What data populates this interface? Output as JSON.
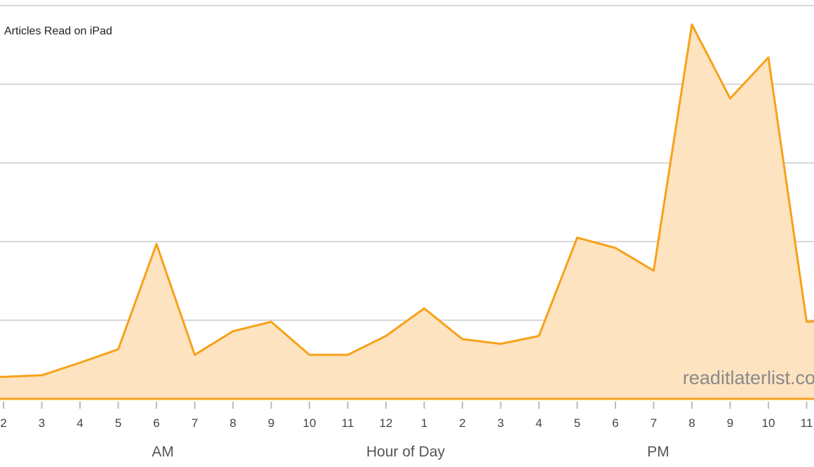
{
  "chart_data": {
    "type": "area",
    "title": "",
    "legend": {
      "label": "Articles Read on iPad",
      "placement": "top-left"
    },
    "xlabel": "Hour of Day",
    "period_labels": [
      "AM",
      "PM"
    ],
    "watermark": "readitlaterlist.co",
    "categories": [
      "2",
      "3",
      "4",
      "5",
      "6",
      "7",
      "8",
      "9",
      "10",
      "11",
      "12",
      "1",
      "2",
      "3",
      "4",
      "5",
      "6",
      "7",
      "8",
      "9",
      "10",
      "11"
    ],
    "series": [
      {
        "values": [
          0.28,
          0.3,
          0.46,
          0.63,
          1.97,
          0.56,
          0.86,
          0.98,
          0.56,
          0.56,
          0.8,
          1.15,
          0.76,
          0.7,
          0.8,
          2.05,
          1.92,
          1.63,
          4.76,
          3.82,
          4.34,
          0.98
        ]
      }
    ],
    "trailing_value": 1.01,
    "ylim": [
      0,
      5
    ],
    "yticks_shown": false,
    "grid": true,
    "colors": {
      "line": "#f7a11a",
      "fill": "#fde3c0",
      "grid": "#d8d8d8"
    }
  }
}
